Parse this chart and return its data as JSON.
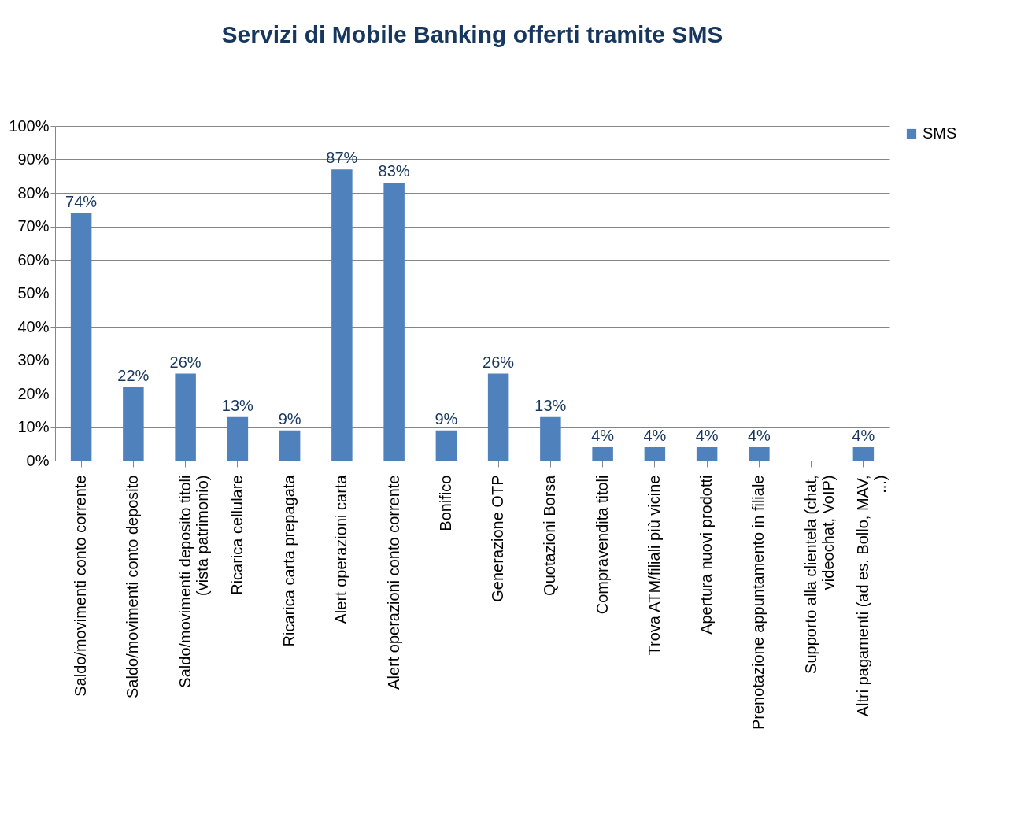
{
  "chart_data": {
    "type": "bar",
    "title": "Servizi di Mobile Banking offerti tramite SMS",
    "categories": [
      "Saldo/movimenti conto corrente",
      "Saldo/movimenti conto deposito",
      "Saldo/movimenti deposito titoli (vista patrimonio)",
      "Ricarica cellulare",
      "Ricarica carta prepagata",
      "Alert operazioni carta",
      "Alert operazioni conto corrente",
      "Bonifico",
      "Generazione OTP",
      "Quotazioni Borsa",
      "Compravendita titoli",
      "Trova ATM/filiali più vicine",
      "Apertura nuovi prodotti",
      "Prenotazione appuntamento in filiale",
      "Supporto alla clientela (chat, videochat, VoIP)",
      "Altri pagamenti (ad es. Bollo, MAV, ...)"
    ],
    "series": [
      {
        "name": "SMS",
        "color": "#4f81bd",
        "values": [
          74,
          22,
          26,
          13,
          9,
          87,
          83,
          9,
          26,
          13,
          4,
          4,
          4,
          4,
          null,
          4
        ],
        "value_labels": [
          "74%",
          "22%",
          "26%",
          "13%",
          "9%",
          "87%",
          "83%",
          "9%",
          "26%",
          "13%",
          "4%",
          "4%",
          "4%",
          "4%",
          null,
          "4%"
        ]
      }
    ],
    "ylim": [
      0,
      100
    ],
    "yticks": [
      {
        "value": 0,
        "label": "0%"
      },
      {
        "value": 10,
        "label": "10%"
      },
      {
        "value": 20,
        "label": "20%"
      },
      {
        "value": 30,
        "label": "30%"
      },
      {
        "value": 40,
        "label": "40%"
      },
      {
        "value": 50,
        "label": "50%"
      },
      {
        "value": 60,
        "label": "60%"
      },
      {
        "value": 70,
        "label": "70%"
      },
      {
        "value": 80,
        "label": "80%"
      },
      {
        "value": 90,
        "label": "90%"
      },
      {
        "value": 100,
        "label": "100%"
      }
    ],
    "grid": "y",
    "legend": "right"
  }
}
